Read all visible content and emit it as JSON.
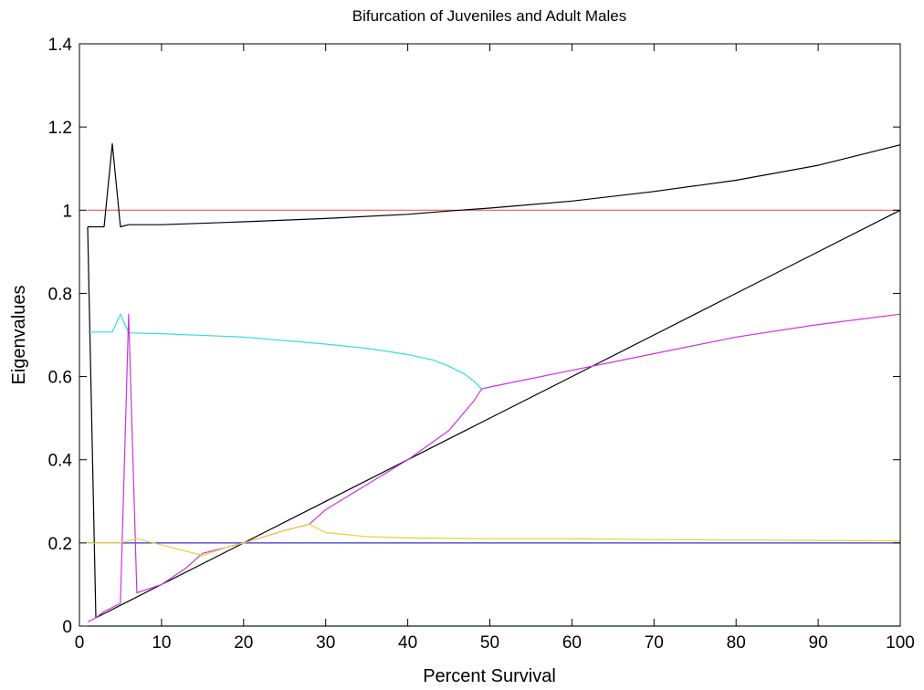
{
  "chart_data": {
    "type": "line",
    "title": "Bifurcation of Juveniles and Adult Males",
    "xlabel": "Percent Survival",
    "ylabel": "Eigenvalues",
    "xlim": [
      0,
      100
    ],
    "ylim": [
      0,
      1.4
    ],
    "xticks": [
      "0",
      "10",
      "20",
      "30",
      "40",
      "50",
      "60",
      "70",
      "80",
      "90",
      "100"
    ],
    "yticks": [
      "0",
      "0.2",
      "0.4",
      "0.6",
      "0.8",
      "1",
      "1.2",
      "1.4"
    ],
    "grid": false,
    "series": [
      {
        "color": "#00cc00",
        "points": [
          [
            1,
            0
          ],
          [
            100,
            0
          ]
        ]
      },
      {
        "color": "#3333cc",
        "points": [
          [
            1,
            0.2
          ],
          [
            100,
            0.2
          ]
        ]
      },
      {
        "color": "#e06060",
        "points": [
          [
            1,
            1.0
          ],
          [
            100,
            1.0
          ]
        ]
      },
      {
        "color": "#000000",
        "points": [
          [
            1,
            0.96
          ],
          [
            3,
            0.96
          ],
          [
            4,
            1.16
          ],
          [
            5,
            0.96
          ],
          [
            6,
            0.965
          ],
          [
            10,
            0.965
          ],
          [
            20,
            0.972
          ],
          [
            30,
            0.98
          ],
          [
            40,
            0.99
          ],
          [
            45,
            0.998
          ],
          [
            50,
            1.005
          ],
          [
            60,
            1.022
          ],
          [
            70,
            1.045
          ],
          [
            80,
            1.072
          ],
          [
            90,
            1.108
          ],
          [
            100,
            1.157
          ]
        ]
      },
      {
        "color": "#000000",
        "points": [
          [
            1,
            0.96
          ],
          [
            2,
            0.02
          ],
          [
            5,
            0.05
          ],
          [
            10,
            0.1
          ],
          [
            20,
            0.2
          ],
          [
            30,
            0.3
          ],
          [
            40,
            0.4
          ],
          [
            50,
            0.5
          ],
          [
            60,
            0.6
          ],
          [
            70,
            0.7
          ],
          [
            80,
            0.8
          ],
          [
            90,
            0.9
          ],
          [
            100,
            1.0
          ]
        ]
      },
      {
        "color": "#33dddd",
        "points": [
          [
            1,
            0.707
          ],
          [
            4,
            0.707
          ],
          [
            5,
            0.75
          ],
          [
            6,
            0.705
          ],
          [
            10,
            0.703
          ],
          [
            20,
            0.695
          ],
          [
            30,
            0.678
          ],
          [
            35,
            0.668
          ],
          [
            40,
            0.653
          ],
          [
            43,
            0.64
          ],
          [
            45,
            0.625
          ],
          [
            47,
            0.605
          ],
          [
            48,
            0.59
          ],
          [
            49,
            0.57
          ]
        ]
      },
      {
        "color": "#cc33dd",
        "points": [
          [
            1,
            0.01
          ],
          [
            2,
            0.02
          ],
          [
            3,
            0.035
          ],
          [
            4,
            0.045
          ],
          [
            5,
            0.055
          ],
          [
            6,
            0.75
          ],
          [
            7,
            0.08
          ],
          [
            10,
            0.1
          ],
          [
            13,
            0.14
          ],
          [
            15,
            0.175
          ],
          [
            20,
            0.2
          ],
          [
            25,
            0.23
          ],
          [
            28,
            0.245
          ],
          [
            30,
            0.28
          ],
          [
            35,
            0.34
          ],
          [
            40,
            0.4
          ],
          [
            45,
            0.47
          ],
          [
            48,
            0.54
          ],
          [
            49,
            0.57
          ],
          [
            50,
            0.575
          ],
          [
            60,
            0.615
          ],
          [
            70,
            0.655
          ],
          [
            80,
            0.695
          ],
          [
            90,
            0.725
          ],
          [
            100,
            0.75
          ]
        ]
      },
      {
        "color": "#e8d040",
        "points": [
          [
            1,
            0.2
          ],
          [
            5,
            0.2
          ],
          [
            7,
            0.21
          ],
          [
            10,
            0.195
          ],
          [
            13,
            0.18
          ],
          [
            15,
            0.17
          ],
          [
            18,
            0.19
          ],
          [
            20,
            0.2
          ],
          [
            25,
            0.23
          ],
          [
            28,
            0.245
          ],
          [
            30,
            0.225
          ],
          [
            35,
            0.215
          ],
          [
            40,
            0.212
          ],
          [
            50,
            0.21
          ],
          [
            60,
            0.21
          ],
          [
            70,
            0.208
          ],
          [
            80,
            0.207
          ],
          [
            90,
            0.206
          ],
          [
            100,
            0.205
          ]
        ]
      }
    ]
  }
}
